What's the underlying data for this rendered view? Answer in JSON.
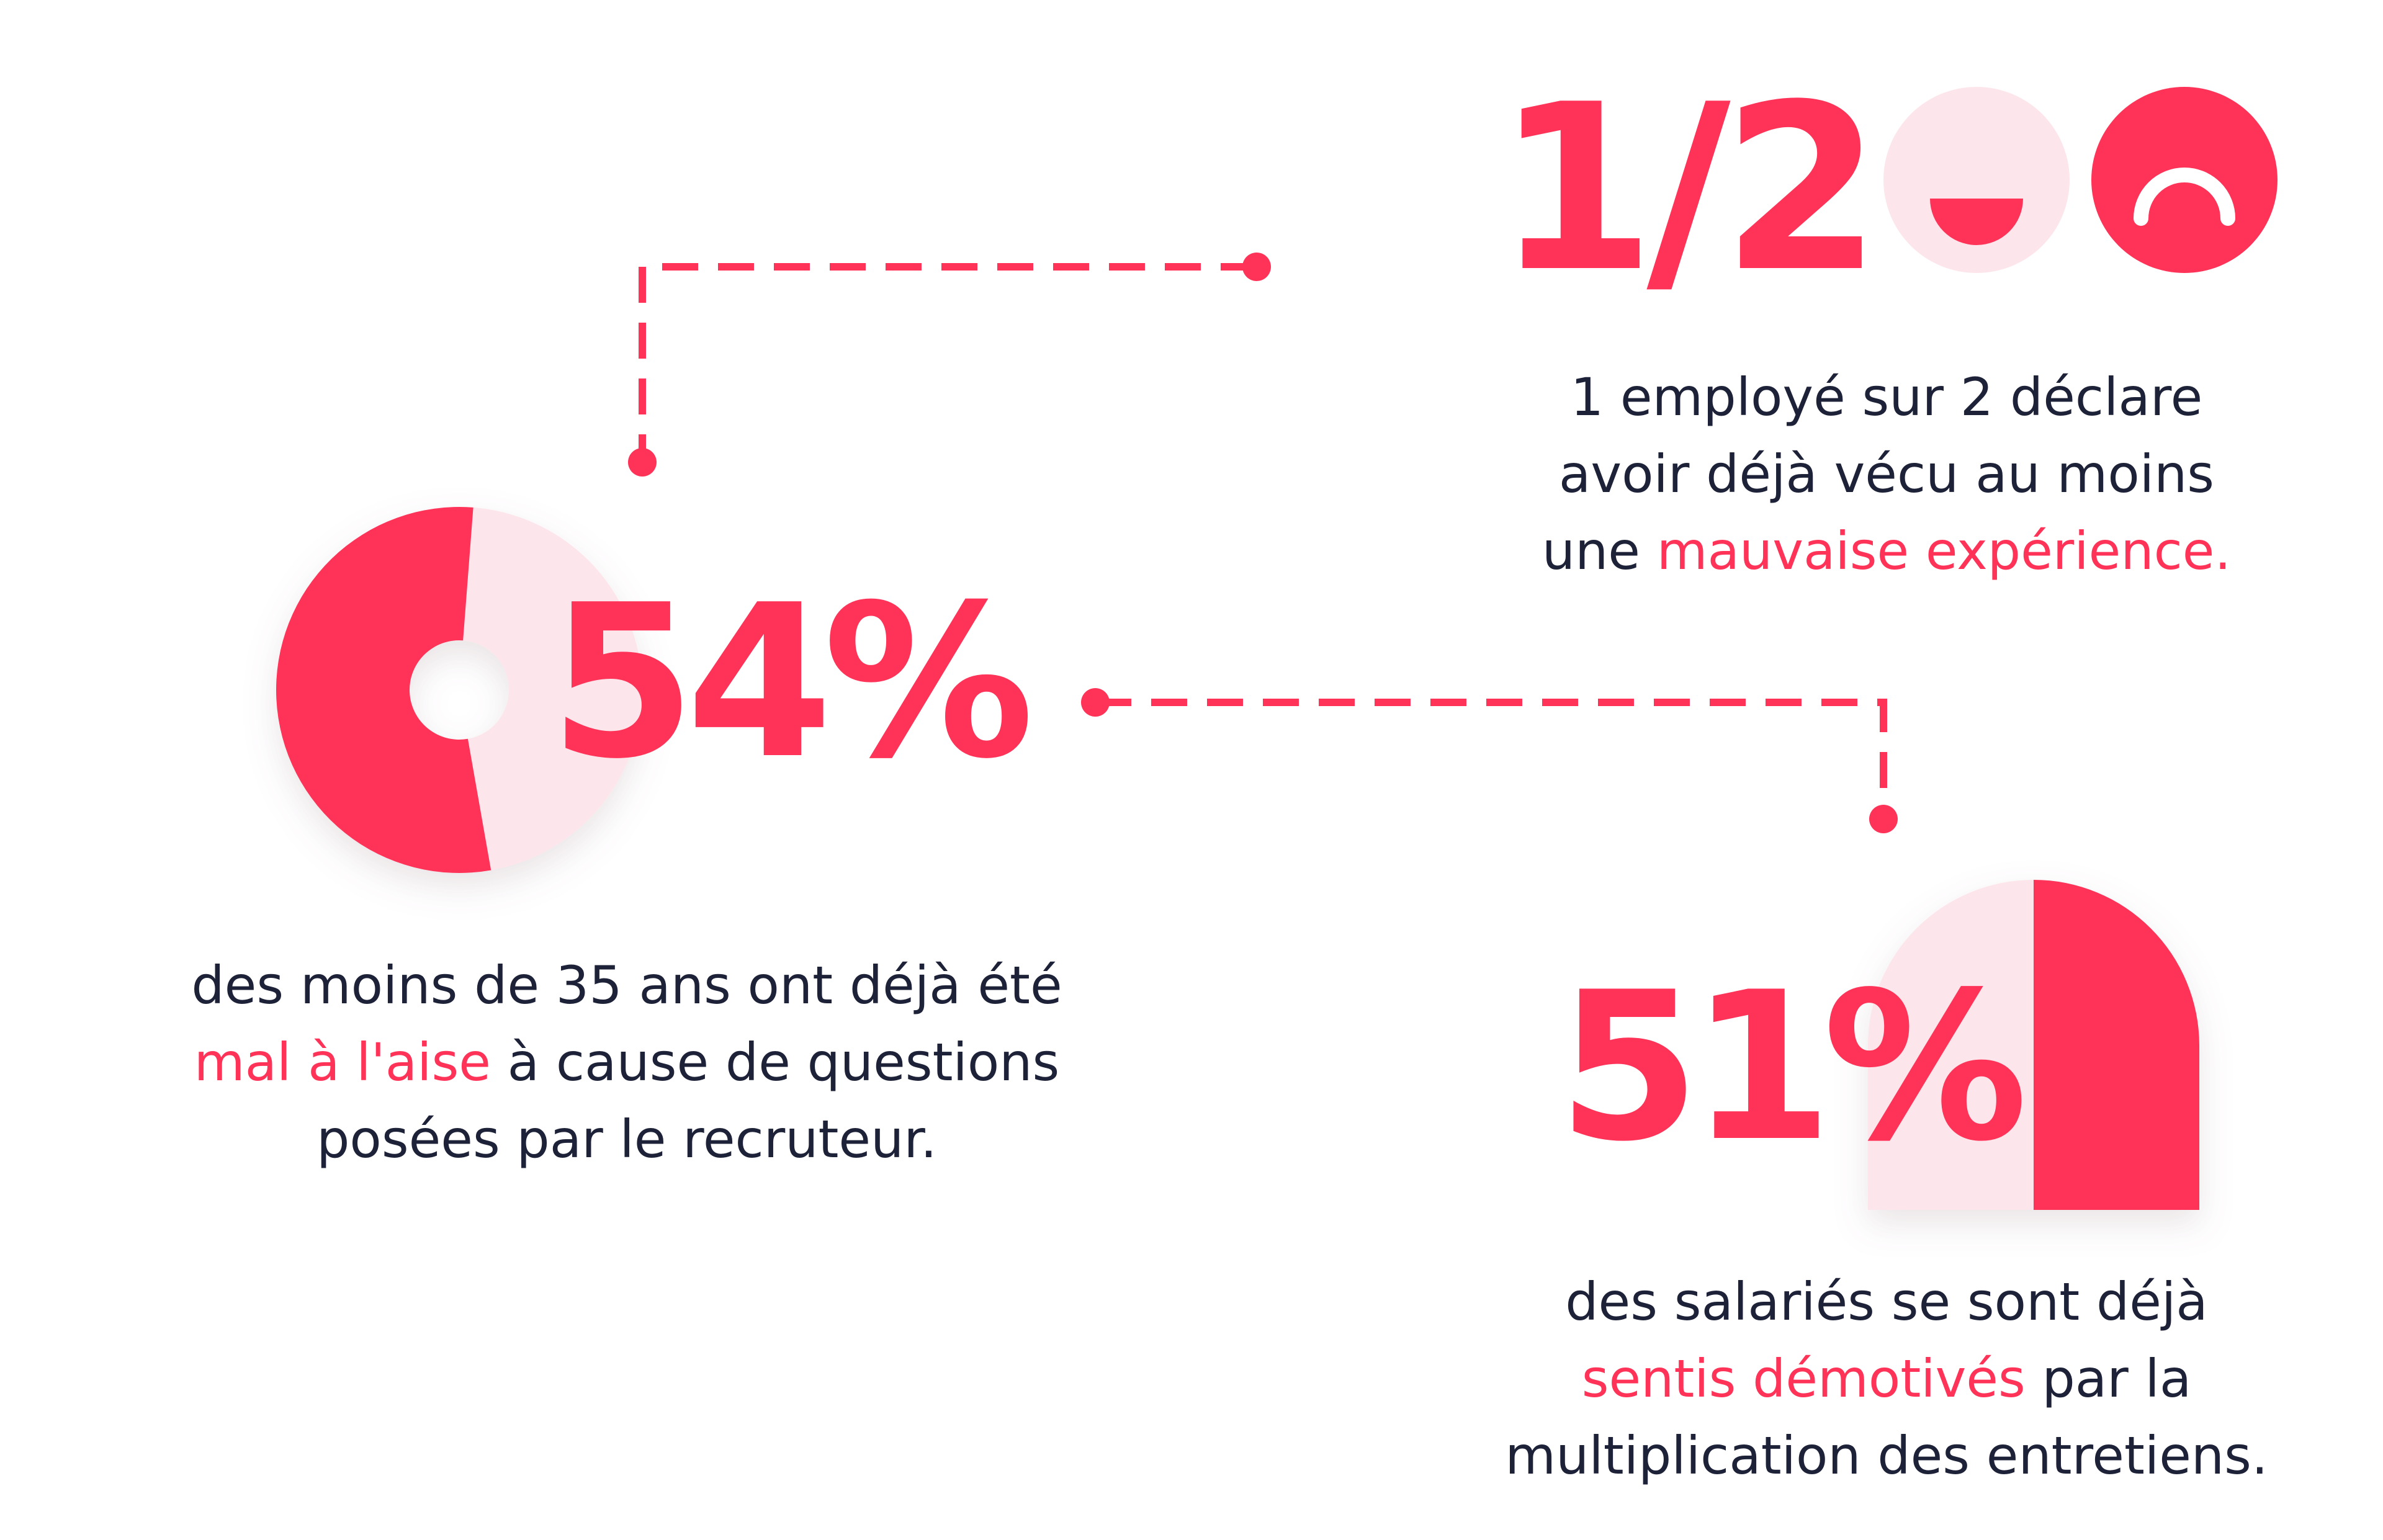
{
  "colors": {
    "accent": "#ff3358",
    "accent_light": "#fde6eb",
    "text": "#1d2238"
  },
  "stat_half": {
    "value": "1/2",
    "icons": [
      "neutral-face-icon",
      "sad-face-icon"
    ],
    "caption": {
      "line1": "1 employé sur 2 déclare",
      "line2": "avoir déjà vécu au moins",
      "line3_before": "une ",
      "line3_highlight": "mauvaise expérience."
    }
  },
  "stat_54": {
    "value": "54%",
    "share": 0.54,
    "caption": {
      "line1": "des moins de 35 ans ont déjà été",
      "line2_highlight": "mal à l'aise",
      "line2_after": " à cause de questions",
      "line3": "posées par le recruteur."
    }
  },
  "stat_51": {
    "value": "51%",
    "share": 0.51,
    "caption": {
      "line1": "des salariés se sont déjà",
      "line2_highlight": "sentis démotivés",
      "line2_after": " par la",
      "line3": "multiplication des entretiens."
    }
  }
}
